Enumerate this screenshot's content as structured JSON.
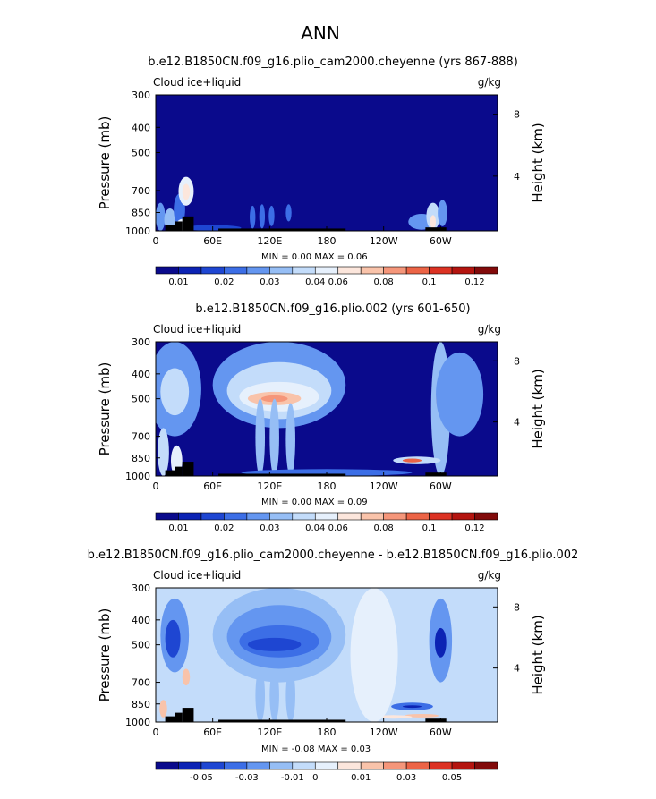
{
  "page": {
    "title": "ANN"
  },
  "colors": {
    "seq": [
      "#0a0a8c",
      "#0c23b4",
      "#1e46d2",
      "#3c6ee6",
      "#6496f0",
      "#96bef5",
      "#c3dcfa",
      "#e6f0fc",
      "#fce6dc",
      "#f9c3aa",
      "#f5967a",
      "#ec6446",
      "#dc3223",
      "#b4140f",
      "#820a0a"
    ],
    "div": [
      "#0a0a8c",
      "#0c23b4",
      "#1e46d2",
      "#3c6ee6",
      "#6496f0",
      "#96bef5",
      "#c3dcfa",
      "#e6f0fc",
      "#fce6dc",
      "#f9c3aa",
      "#f5967a",
      "#ec6446",
      "#dc3223",
      "#b4140f",
      "#820a0a"
    ],
    "terrain": "#000000"
  },
  "chart_data": [
    {
      "type": "heatmap",
      "title": "b.e12.B1850CN.f09_g16.plio_cam2000.cheyenne (yrs 867-888)",
      "left_label": "Cloud ice+liquid",
      "right_label": "g/kg",
      "ylabel": "Pressure (mb)",
      "ylabel_right": "Height (km)",
      "yticks": [
        "300",
        "400",
        "500",
        "700",
        "850",
        "1000"
      ],
      "yticks_right": [
        "8",
        "4"
      ],
      "xticks": [
        "0",
        "60E",
        "120E",
        "180",
        "120W",
        "60W"
      ],
      "minmax": "MIN =    0.00   MAX =    0.06",
      "colorbar_labels": [
        "0.01",
        "0.02",
        "0.03",
        "0.04",
        "0.06",
        "0.08",
        "0.1",
        "0.12"
      ],
      "palette": "seq",
      "background_level": 0,
      "features": [
        {
          "lon": 5,
          "p0": 1000,
          "p1": 780,
          "level": 4,
          "w": 5
        },
        {
          "lon": 15,
          "p0": 1000,
          "p1": 820,
          "level": 5,
          "w": 6
        },
        {
          "lon": 25,
          "p0": 950,
          "p1": 720,
          "level": 3,
          "w": 6
        },
        {
          "lon": 32,
          "p0": 800,
          "p1": 620,
          "level": 7,
          "w": 8
        },
        {
          "lon": 32,
          "p0": 760,
          "p1": 660,
          "level": 8,
          "w": 4
        },
        {
          "lon": 28,
          "p0": 1000,
          "p1": 900,
          "level": 7,
          "w": 6
        },
        {
          "lon": 102,
          "p0": 980,
          "p1": 800,
          "level": 3,
          "w": 3
        },
        {
          "lon": 112,
          "p0": 980,
          "p1": 790,
          "level": 3,
          "w": 3
        },
        {
          "lon": 122,
          "p0": 960,
          "p1": 800,
          "level": 3,
          "w": 3
        },
        {
          "lon": 140,
          "p0": 920,
          "p1": 790,
          "level": 3,
          "w": 3
        },
        {
          "lon": 280,
          "p0": 990,
          "p1": 860,
          "level": 4,
          "w": 14
        },
        {
          "lon": 292,
          "p0": 990,
          "p1": 780,
          "level": 6,
          "w": 7
        },
        {
          "lon": 292,
          "p0": 980,
          "p1": 870,
          "level": 8,
          "w": 3
        },
        {
          "lon": 302,
          "p0": 960,
          "p1": 760,
          "level": 4,
          "w": 5
        },
        {
          "lon": 60,
          "p0": 1000,
          "p1": 950,
          "level": 2,
          "w": 30
        }
      ]
    },
    {
      "type": "heatmap",
      "title": "b.e12.B1850CN.f09_g16.plio.002 (yrs 601-650)",
      "left_label": "Cloud ice+liquid",
      "right_label": "g/kg",
      "ylabel": "Pressure (mb)",
      "ylabel_right": "Height (km)",
      "yticks": [
        "300",
        "400",
        "500",
        "700",
        "850",
        "1000"
      ],
      "yticks_right": [
        "8",
        "4"
      ],
      "xticks": [
        "0",
        "60E",
        "120E",
        "180",
        "120W",
        "60W"
      ],
      "minmax": "MIN =    0.00   MAX =    0.09",
      "colorbar_labels": [
        "0.01",
        "0.02",
        "0.03",
        "0.04",
        "0.06",
        "0.08",
        "0.1",
        "0.12"
      ],
      "palette": "seq",
      "background_level": 0,
      "features": [
        {
          "lon": 20,
          "p0": 700,
          "p1": 300,
          "level": 4,
          "w": 28
        },
        {
          "lon": 20,
          "p0": 580,
          "p1": 380,
          "level": 6,
          "w": 15
        },
        {
          "lon": 130,
          "p0": 650,
          "p1": 300,
          "level": 4,
          "w": 70
        },
        {
          "lon": 130,
          "p0": 600,
          "p1": 360,
          "level": 6,
          "w": 55
        },
        {
          "lon": 130,
          "p0": 560,
          "p1": 430,
          "level": 7,
          "w": 42
        },
        {
          "lon": 125,
          "p0": 530,
          "p1": 470,
          "level": 9,
          "w": 28
        },
        {
          "lon": 125,
          "p0": 515,
          "p1": 485,
          "level": 10,
          "w": 14
        },
        {
          "lon": 110,
          "p0": 1000,
          "p1": 500,
          "level": 5,
          "w": 5
        },
        {
          "lon": 125,
          "p0": 1000,
          "p1": 500,
          "level": 5,
          "w": 5
        },
        {
          "lon": 142,
          "p0": 1000,
          "p1": 520,
          "level": 5,
          "w": 5
        },
        {
          "lon": 8,
          "p0": 1000,
          "p1": 650,
          "level": 6,
          "w": 6
        },
        {
          "lon": 22,
          "p0": 1000,
          "p1": 760,
          "level": 7,
          "w": 6
        },
        {
          "lon": 300,
          "p0": 1000,
          "p1": 300,
          "level": 5,
          "w": 10
        },
        {
          "lon": 300,
          "p0": 560,
          "p1": 430,
          "level": 9,
          "w": 5
        },
        {
          "lon": 320,
          "p0": 700,
          "p1": 330,
          "level": 4,
          "w": 25
        },
        {
          "lon": 275,
          "p0": 900,
          "p1": 840,
          "level": 6,
          "w": 25
        },
        {
          "lon": 270,
          "p0": 885,
          "p1": 855,
          "level": 11,
          "w": 10
        },
        {
          "lon": 180,
          "p0": 1000,
          "p1": 940,
          "level": 3,
          "w": 90
        }
      ]
    },
    {
      "type": "heatmap",
      "title": "b.e12.B1850CN.f09_g16.plio_cam2000.cheyenne - b.e12.B1850CN.f09_g16.plio.002",
      "left_label": "Cloud ice+liquid",
      "right_label": "g/kg",
      "ylabel": "Pressure (mb)",
      "ylabel_right": "Height (km)",
      "yticks": [
        "300",
        "400",
        "500",
        "700",
        "850",
        "1000"
      ],
      "yticks_right": [
        "8",
        "4"
      ],
      "xticks": [
        "0",
        "60E",
        "120E",
        "180",
        "120W",
        "60W"
      ],
      "minmax": "MIN =   -0.08   MAX =    0.03",
      "colorbar_labels": [
        "-0.05",
        "-0.03",
        "-0.01",
        "0",
        "0.01",
        "0.03",
        "0.05"
      ],
      "palette": "div",
      "background_level": 6,
      "features": [
        {
          "lon": 130,
          "p0": 700,
          "p1": 300,
          "level": 5,
          "w": 70
        },
        {
          "lon": 130,
          "p0": 620,
          "p1": 350,
          "level": 4,
          "w": 55
        },
        {
          "lon": 130,
          "p0": 560,
          "p1": 420,
          "level": 3,
          "w": 42
        },
        {
          "lon": 125,
          "p0": 530,
          "p1": 470,
          "level": 2,
          "w": 28
        },
        {
          "lon": 20,
          "p0": 640,
          "p1": 330,
          "level": 4,
          "w": 15
        },
        {
          "lon": 18,
          "p0": 560,
          "p1": 400,
          "level": 2,
          "w": 8
        },
        {
          "lon": 300,
          "p0": 700,
          "p1": 330,
          "level": 4,
          "w": 12
        },
        {
          "lon": 300,
          "p0": 560,
          "p1": 430,
          "level": 1,
          "w": 6
        },
        {
          "lon": 110,
          "p0": 1000,
          "p1": 620,
          "level": 5,
          "w": 5
        },
        {
          "lon": 125,
          "p0": 1000,
          "p1": 620,
          "level": 5,
          "w": 5
        },
        {
          "lon": 142,
          "p0": 1000,
          "p1": 620,
          "level": 5,
          "w": 5
        },
        {
          "lon": 270,
          "p0": 900,
          "p1": 840,
          "level": 3,
          "w": 22
        },
        {
          "lon": 270,
          "p0": 880,
          "p1": 860,
          "level": 1,
          "w": 10
        },
        {
          "lon": 32,
          "p0": 720,
          "p1": 620,
          "level": 9,
          "w": 4
        },
        {
          "lon": 8,
          "p0": 960,
          "p1": 820,
          "level": 9,
          "w": 4
        },
        {
          "lon": 280,
          "p0": 960,
          "p1": 930,
          "level": 9,
          "w": 18
        },
        {
          "lon": 250,
          "p0": 970,
          "p1": 940,
          "level": 8,
          "w": 20
        },
        {
          "lon": 230,
          "p0": 1000,
          "p1": 300,
          "level": 7,
          "w": 25
        }
      ]
    }
  ],
  "terrain": [
    {
      "lon0": 10,
      "lon1": 20,
      "p": 950
    },
    {
      "lon0": 20,
      "lon1": 28,
      "p": 920
    },
    {
      "lon0": 28,
      "lon1": 40,
      "p": 880
    },
    {
      "lon0": 66,
      "lon1": 200,
      "p": 980
    },
    {
      "lon0": 284,
      "lon1": 306,
      "p": 970
    }
  ]
}
